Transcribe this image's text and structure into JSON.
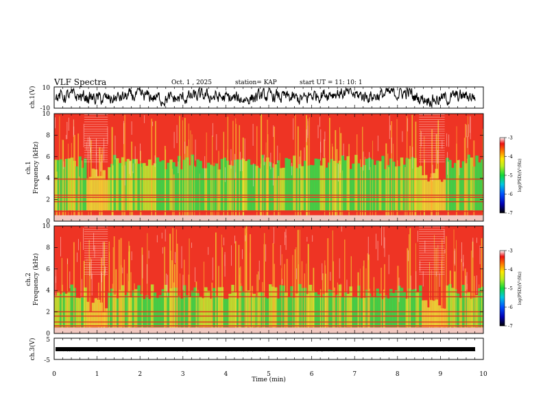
{
  "header": {
    "title": "VLF Spectra",
    "date": "Oct. 1 , 2025",
    "station": "station= KAP",
    "start_ut": "start UT =  11: 10: 1"
  },
  "colors": {
    "spectrogram_background": "#ee3424",
    "band_green": "#2ee04a",
    "band_yellow": "#e8e838",
    "waveform": "#000000"
  },
  "chart_data": [
    {
      "type": "line",
      "panel": "ch1-waveform",
      "ylabel": "ch.1(V)",
      "ylim": [
        -10,
        10
      ],
      "y_ticks": [
        "10",
        "-10"
      ],
      "xlim": [
        0,
        10
      ],
      "series": [
        {
          "values": []
        }
      ]
    },
    {
      "type": "heatmap",
      "panel": "ch1-spectrogram",
      "ylabel_line1": "ch.1",
      "ylabel_line2": "Frequency (kHz)",
      "ylim": [
        0,
        10
      ],
      "y_ticks": [
        "0",
        "2",
        "4",
        "6",
        "8",
        "10"
      ],
      "xlim": [
        0,
        10
      ],
      "colorbar": {
        "label": "log(PSD)(V²/Hz)",
        "range": [
          -7,
          -3
        ],
        "ticks": [
          "-3",
          "-4",
          "-5",
          "-6",
          "-7"
        ]
      }
    },
    {
      "type": "heatmap",
      "panel": "ch2-spectrogram",
      "ylabel_line1": "ch.2",
      "ylabel_line2": "Frequency (kHz)",
      "ylim": [
        0,
        10
      ],
      "y_ticks": [
        "0",
        "2",
        "4",
        "6",
        "8",
        "10"
      ],
      "xlim": [
        0,
        10
      ],
      "colorbar": {
        "label": "log(PSD)(V²/Hz)",
        "range": [
          -7,
          -3
        ],
        "ticks": [
          "-3",
          "-4",
          "-5",
          "-6",
          "-7"
        ]
      }
    },
    {
      "type": "line",
      "panel": "ch3-waveform",
      "ylabel": "ch.3(V)",
      "ylim": [
        -5,
        5
      ],
      "y_ticks": [
        "5",
        "-5"
      ],
      "xlim": [
        0,
        10
      ],
      "xlabel": "Time (min)",
      "x_ticks": [
        "0",
        "1",
        "2",
        "3",
        "4",
        "5",
        "6",
        "7",
        "8",
        "9",
        "10"
      ],
      "series": [
        {
          "values": []
        }
      ]
    }
  ]
}
